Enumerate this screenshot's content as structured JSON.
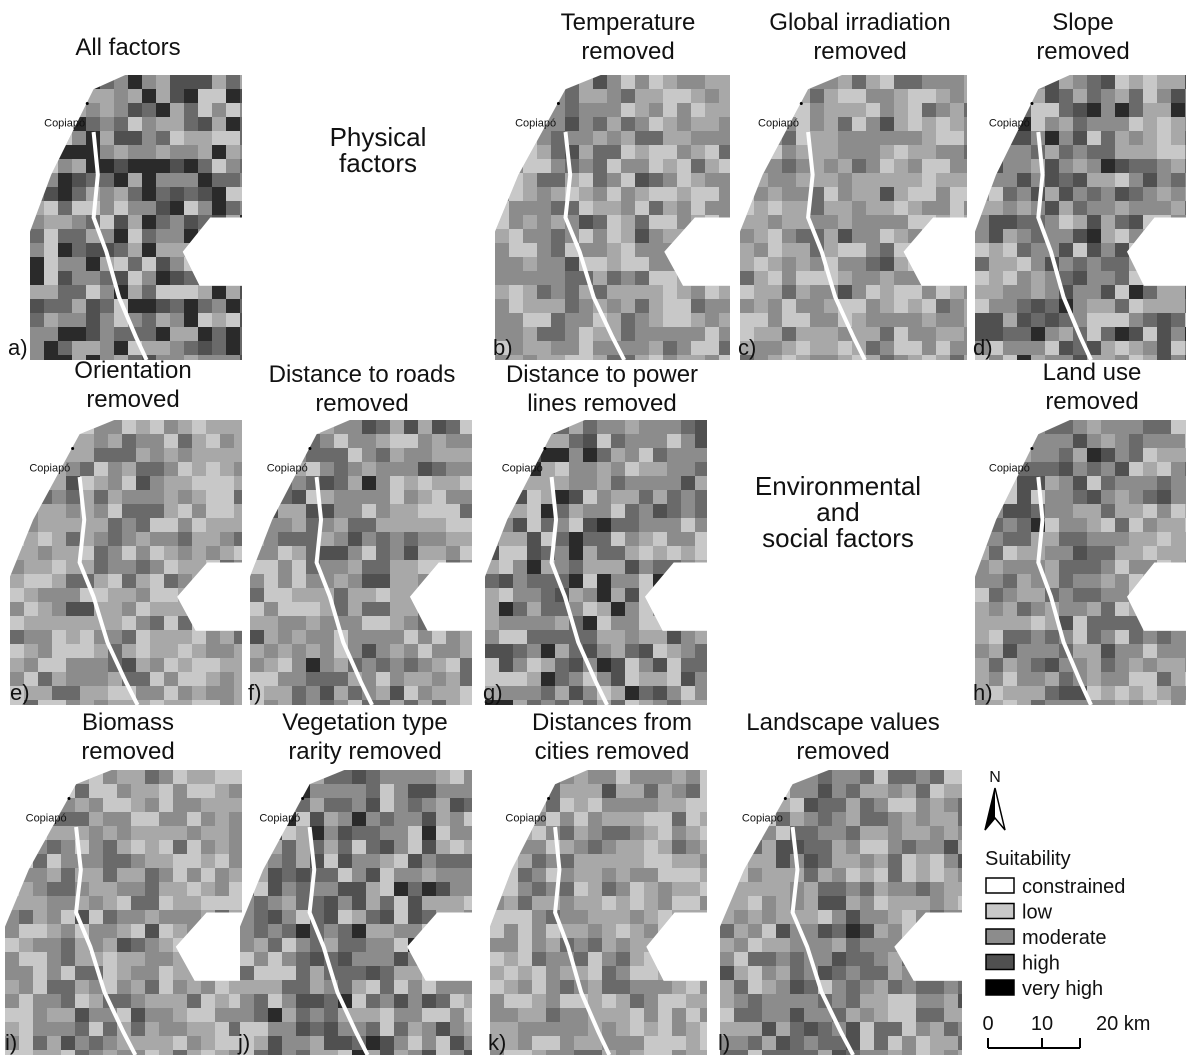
{
  "panels": [
    {
      "letter": "a)",
      "title": [
        "All factors"
      ],
      "city": "Copiapó"
    },
    {
      "letter": "b)",
      "title": [
        "Temperature",
        "removed"
      ],
      "city": "Copiapó"
    },
    {
      "letter": "c)",
      "title": [
        "Global irradiation",
        "removed"
      ],
      "city": "Copiapó"
    },
    {
      "letter": "d)",
      "title": [
        "Slope",
        "removed"
      ],
      "city": "Copiapó"
    },
    {
      "letter": "e)",
      "title": [
        "Orientation",
        "removed"
      ],
      "city": "Copiapó"
    },
    {
      "letter": "f)",
      "title": [
        "Distance to roads",
        "removed"
      ],
      "city": "Copiapó"
    },
    {
      "letter": "g)",
      "title": [
        "Distance to power",
        "lines removed"
      ],
      "city": "Copiapó"
    },
    {
      "letter": "h)",
      "title": [
        "Land use",
        "removed"
      ],
      "city": "Copiapó"
    },
    {
      "letter": "i)",
      "title": [
        "Biomass",
        "removed"
      ],
      "city": "Copiapó"
    },
    {
      "letter": "j)",
      "title": [
        "Vegetation type",
        "rarity removed"
      ],
      "city": "Copiapó"
    },
    {
      "letter": "k)",
      "title": [
        "Distances from",
        "cities removed"
      ],
      "city": "Copiapo"
    },
    {
      "letter": "l)",
      "title": [
        "Landscape values",
        "removed"
      ],
      "city": "Copiapo"
    }
  ],
  "groups": [
    [
      "Physical",
      "factors"
    ],
    [
      "Environmental",
      "and",
      "social factors"
    ]
  ],
  "legend": {
    "north": "N",
    "title": "Suitability",
    "items": [
      {
        "label": "constrained",
        "color": "#ffffff"
      },
      {
        "label": "low",
        "color": "#c8c8c8"
      },
      {
        "label": "moderate",
        "color": "#8c8c8c"
      },
      {
        "label": "high",
        "color": "#505050"
      },
      {
        "label": "very high",
        "color": "#000000"
      }
    ],
    "scale": [
      "0",
      "10",
      "20 km"
    ]
  }
}
